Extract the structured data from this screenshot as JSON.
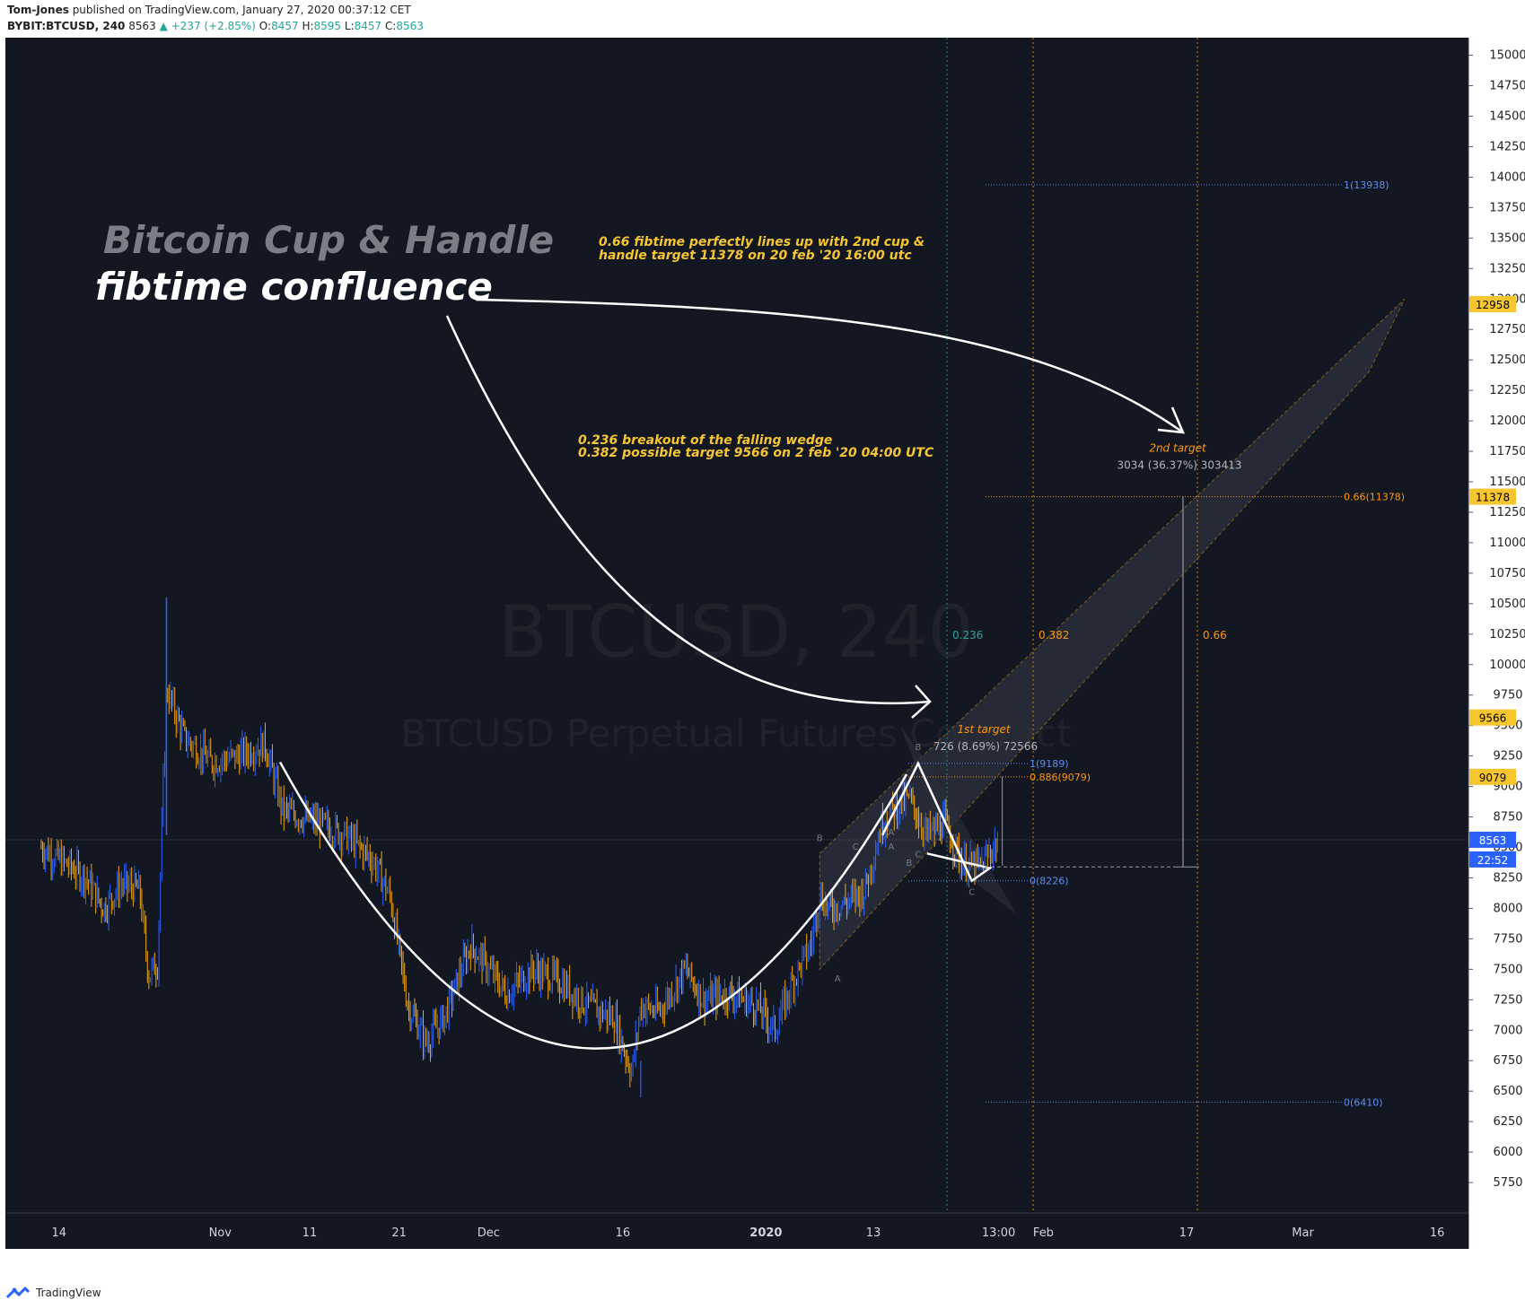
{
  "header": {
    "author": "Tom-Jones",
    "published_text": "published on TradingView.com, January 27, 2020 00:37:12 CET",
    "symbol": "BYBIT:BTCUSD, 240",
    "last": "8563",
    "change": "▲ +237 (+2.85%)",
    "open_label": "O:",
    "open": "8457",
    "high_label": "H:",
    "high": "8595",
    "low_label": "L:",
    "low": "8457",
    "close_label": "C:",
    "close": "8563"
  },
  "footer": {
    "brand": "TradingView"
  },
  "colors": {
    "background": "#131722",
    "up": "#2962ff",
    "down": "#f7a600",
    "fib_blue": "#5b8def",
    "fib_orange": "#ff9800",
    "annotation": "#f7c52e",
    "title_gray": "#7a7d85"
  },
  "chart_data": {
    "type": "candlestick",
    "watermark": "BTCUSD, 240",
    "watermark_sub": "BTCUSD Perpetual Futures Contract",
    "title_line1": "Bitcoin Cup & Handle",
    "title_line2": "fibtime confluence",
    "annotations": [
      {
        "line1": "0.66 fibtime perfectly lines up with 2nd cup &",
        "line2": "handle target 11378 on 20 feb '20 16:00 utc"
      },
      {
        "line1": "0.236 breakout of the falling wedge",
        "line2": "0.382 possible target 9566 on 2 feb '20 04:00 UTC"
      }
    ],
    "ylim": [
      5500,
      15100
    ],
    "y_ticks": [
      "15000",
      "14750",
      "14500",
      "14250",
      "14000",
      "13750",
      "13500",
      "13250",
      "13000",
      "12750",
      "12500",
      "12250",
      "12000",
      "11750",
      "11500",
      "11250",
      "11000",
      "10750",
      "10500",
      "10250",
      "10000",
      "9750",
      "9500",
      "9250",
      "9000",
      "8750",
      "8500",
      "8250",
      "8000",
      "7750",
      "7500",
      "7250",
      "7000",
      "6750",
      "6500",
      "6250",
      "6000",
      "5750"
    ],
    "x_ticks": [
      "14",
      "Nov",
      "11",
      "21",
      "Dec",
      "16",
      "2020",
      "13",
      "13:00",
      "Feb",
      "17",
      "Mar",
      "16"
    ],
    "price_badges": [
      {
        "label": "12958",
        "value": 12958
      },
      {
        "label": "11378",
        "value": 11378
      },
      {
        "label": "9566",
        "value": 9566
      },
      {
        "label": "9079",
        "value": 9079
      },
      {
        "label": "8563",
        "value": 8563
      },
      {
        "label": "22:52",
        "value": 8400
      }
    ],
    "fib_time": [
      {
        "label": "0.236"
      },
      {
        "label": "0.382"
      },
      {
        "label": "0.66"
      }
    ],
    "fib_levels": [
      {
        "label": "1(13938)",
        "value": 13938
      },
      {
        "label": "0.66(11378)",
        "value": 11378
      },
      {
        "label": "0(6410)",
        "value": 6410
      },
      {
        "label": "1(9189)",
        "value": 9189
      },
      {
        "label": "0.886(9079)",
        "value": 9079
      },
      {
        "label": "0(8226)",
        "value": 8226
      }
    ],
    "targets": [
      {
        "title": "1st target",
        "measure": "726 (8.69%) 72566"
      },
      {
        "title": "2nd target",
        "measure": "3034 (36.37%) 303413"
      }
    ],
    "pattern_letters": [
      "B",
      "A",
      "C",
      "B",
      "A",
      "C",
      "B",
      "A",
      "C"
    ],
    "price_path": [
      {
        "t": "Oct 12",
        "v": 8500
      },
      {
        "t": "Oct 14",
        "v": 8400
      },
      {
        "t": "Oct 17",
        "v": 8250
      },
      {
        "t": "Oct 19",
        "v": 8000
      },
      {
        "t": "Oct 21",
        "v": 8200
      },
      {
        "t": "Oct 23",
        "v": 8150
      },
      {
        "t": "Oct 24",
        "v": 7450
      },
      {
        "t": "Oct 25",
        "v": 7550
      },
      {
        "t": "Oct 26",
        "v": 9800
      },
      {
        "t": "Oct 28",
        "v": 9400
      },
      {
        "t": "Oct 31",
        "v": 9200
      },
      {
        "t": "Nov 3",
        "v": 9250
      },
      {
        "t": "Nov 6",
        "v": 9350
      },
      {
        "t": "Nov 8",
        "v": 8800
      },
      {
        "t": "Nov 12",
        "v": 8700
      },
      {
        "t": "Nov 15",
        "v": 8600
      },
      {
        "t": "Nov 18",
        "v": 8400
      },
      {
        "t": "Nov 20",
        "v": 8100
      },
      {
        "t": "Nov 22",
        "v": 7200
      },
      {
        "t": "Nov 24",
        "v": 6900
      },
      {
        "t": "Nov 26",
        "v": 7100
      },
      {
        "t": "Nov 28",
        "v": 7500
      },
      {
        "t": "Nov 29",
        "v": 7700
      },
      {
        "t": "Dec 3",
        "v": 7300
      },
      {
        "t": "Dec 6",
        "v": 7500
      },
      {
        "t": "Dec 9",
        "v": 7400
      },
      {
        "t": "Dec 12",
        "v": 7200
      },
      {
        "t": "Dec 15",
        "v": 7100
      },
      {
        "t": "Dec 17",
        "v": 6650
      },
      {
        "t": "Dec 18",
        "v": 7200
      },
      {
        "t": "Dec 20",
        "v": 7150
      },
      {
        "t": "Dec 23",
        "v": 7500
      },
      {
        "t": "Dec 25",
        "v": 7250
      },
      {
        "t": "Dec 28",
        "v": 7300
      },
      {
        "t": "Dec 31",
        "v": 7200
      },
      {
        "t": "Jan 2",
        "v": 7000
      },
      {
        "t": "Jan 4",
        "v": 7400
      },
      {
        "t": "Jan 6",
        "v": 7700
      },
      {
        "t": "Jan 7",
        "v": 8100
      },
      {
        "t": "Jan 8",
        "v": 8000
      },
      {
        "t": "Jan 10",
        "v": 8050
      },
      {
        "t": "Jan 12",
        "v": 8150
      },
      {
        "t": "Jan 14",
        "v": 8700
      },
      {
        "t": "Jan 15",
        "v": 8800
      },
      {
        "t": "Jan 17",
        "v": 8900
      },
      {
        "t": "Jan 19",
        "v": 8600
      },
      {
        "t": "Jan 21",
        "v": 8700
      },
      {
        "t": "Jan 23",
        "v": 8350
      },
      {
        "t": "Jan 25",
        "v": 8350
      },
      {
        "t": "Jan 27",
        "v": 8563
      }
    ]
  }
}
